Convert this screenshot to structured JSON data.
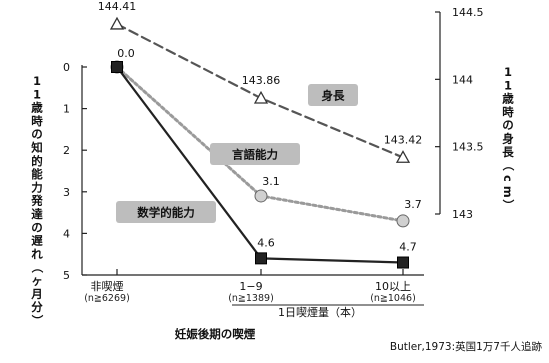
{
  "chart_data": {
    "type": "line",
    "categories": [
      {
        "label": "非喫煙",
        "sub": "(n≧6269)"
      },
      {
        "label": "1−9",
        "sub": "(n≧1389)"
      },
      {
        "label": "10以上",
        "sub": "(n≧1046)"
      }
    ],
    "group_label": "1日喫煙量（本）",
    "xlabel": "妊娠後期の喫煙",
    "ylabel_left": "11歳時の知的能力発達の遅れ（ヶ月分）",
    "ylabel_right": "11歳時の身長（cm）",
    "y_left": {
      "min": 0,
      "max": 5,
      "reversed": true,
      "ticks": [
        "0",
        "1",
        "2",
        "3",
        "4",
        "5"
      ]
    },
    "y_right": {
      "min": 143,
      "max": 144.5,
      "ticks": [
        "143",
        "143.5",
        "144",
        "144.5"
      ]
    },
    "series": [
      {
        "name": "身長",
        "axis": "right",
        "values": [
          144.41,
          143.86,
          143.42
        ],
        "labels": [
          "144.41",
          "143.86",
          "143.42"
        ],
        "marker": "triangle",
        "style": "dashed",
        "color": "#555555"
      },
      {
        "name": "言語能力",
        "axis": "left",
        "values": [
          0.0,
          3.1,
          3.7
        ],
        "labels": [
          "0.0",
          "3.1",
          "3.7"
        ],
        "marker": "circle",
        "style": "dotted",
        "color": "#9a9a9a"
      },
      {
        "name": "数学的能力",
        "axis": "left",
        "values": [
          0.0,
          4.6,
          4.7
        ],
        "labels": [
          "",
          "4.6",
          "4.7"
        ],
        "marker": "square",
        "style": "solid",
        "color": "#222222"
      }
    ],
    "source": "Butler,1973:英国1万7千人追跡"
  }
}
